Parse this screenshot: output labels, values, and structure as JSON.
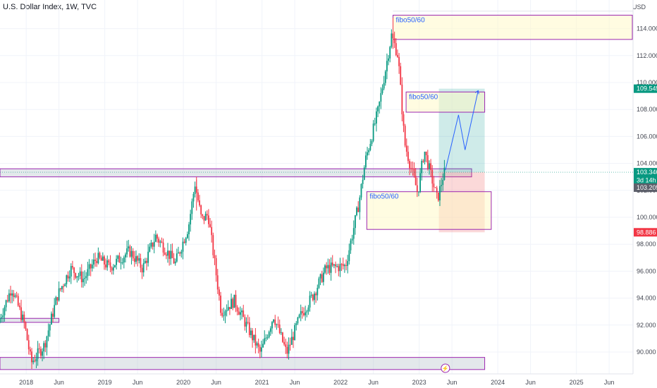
{
  "header": {
    "title": "U.S. Dollar Index, 1W, TVC",
    "currency": "USD"
  },
  "colors": {
    "up": "#089981",
    "down": "#f23645",
    "box_border": "#9c27b0",
    "box_fill": "#fff9c4",
    "zone_fill": "#b0bec5",
    "profit": "#26a69a",
    "loss": "#ef5350",
    "annotation": "#2962ff"
  },
  "chart_data": {
    "type": "candlestick",
    "title": "U.S. Dollar Index, 1W, TVC",
    "y_axis": {
      "side": "right",
      "ylim": [
        88.7,
        117.0
      ],
      "ticks": [
        "90.000",
        "92.000",
        "94.000",
        "96.000",
        "98.000",
        "100.000",
        "102.000",
        "104.000",
        "106.000",
        "108.000",
        "110.000",
        "112.000",
        "114.000"
      ]
    },
    "x_axis": {
      "ticks": [
        "2018",
        "Jun",
        "2019",
        "Jun",
        "2020",
        "Jun",
        "2021",
        "Jun",
        "2022",
        "Jun",
        "2023",
        "Jun",
        "2024",
        "Jun",
        "2025",
        "Jun"
      ]
    },
    "price_path": [
      [
        "2017-09",
        92.2
      ],
      [
        "2017-11",
        94.8
      ],
      [
        "2018-01",
        92.0
      ],
      [
        "2018-02",
        89.2
      ],
      [
        "2018-04",
        90.5
      ],
      [
        "2018-06",
        94.2
      ],
      [
        "2018-08",
        96.2
      ],
      [
        "2018-10",
        95.4
      ],
      [
        "2018-12",
        97.0
      ],
      [
        "2019-02",
        96.3
      ],
      [
        "2019-05",
        97.5
      ],
      [
        "2019-07",
        96.2
      ],
      [
        "2019-09",
        98.6
      ],
      [
        "2019-12",
        96.6
      ],
      [
        "2020-02",
        99.3
      ],
      [
        "2020-03",
        102.5
      ],
      [
        "2020-04",
        99.8
      ],
      [
        "2020-05",
        100.2
      ],
      [
        "2020-07",
        93.0
      ],
      [
        "2020-09",
        93.8
      ],
      [
        "2021-01",
        89.9
      ],
      [
        "2021-03",
        92.7
      ],
      [
        "2021-05",
        89.9
      ],
      [
        "2021-07",
        92.6
      ],
      [
        "2021-09",
        94.2
      ],
      [
        "2021-11",
        96.2
      ],
      [
        "2022-02",
        96.4
      ],
      [
        "2022-04",
        101.0
      ],
      [
        "2022-05",
        104.2
      ],
      [
        "2022-07",
        108.0
      ],
      [
        "2022-09",
        113.5
      ],
      [
        "2022-10",
        112.0
      ],
      [
        "2022-11",
        105.5
      ],
      [
        "2023-01",
        101.8
      ],
      [
        "2023-02",
        105.0
      ],
      [
        "2023-04",
        101.3
      ],
      [
        "2023-05",
        103.3
      ]
    ],
    "wick_extremes": {
      "high": "114.8 (2022-09)",
      "low": "88.3 (2018-02)"
    },
    "price_tags": [
      {
        "label": "109.545",
        "value": 109.545,
        "color": "#089981"
      },
      {
        "label": "103.346",
        "value": 103.346,
        "color": "#089981"
      },
      {
        "label": "3d 14h",
        "value": 102.75,
        "color": "#089981"
      },
      {
        "label": "103.205",
        "value": 102.2,
        "color": "#5d606b"
      },
      {
        "label": "98.886",
        "value": 98.886,
        "color": "#f23645"
      }
    ],
    "annotations": [
      {
        "label": "fibo50/60",
        "from": "2022-09",
        "to": "2025-10",
        "y_range": [
          113.2,
          115.0
        ]
      },
      {
        "label": "fibo50/60",
        "from": "2022-11",
        "to": "2023-11",
        "y_range": [
          107.8,
          109.3
        ]
      },
      {
        "label": "fibo50/60",
        "from": "2022-05",
        "to": "2023-12",
        "y_range": [
          99.1,
          101.9
        ]
      }
    ],
    "zones": [
      {
        "from": "2017-09",
        "to": "2023-09",
        "y_range": [
          103.0,
          103.6
        ]
      },
      {
        "from": "2017-09",
        "to": "2018-06",
        "y_range": [
          92.2,
          92.5
        ]
      },
      {
        "from": "2017-09",
        "to": "2023-11",
        "y_range": [
          88.7,
          89.6
        ]
      }
    ],
    "position": {
      "type": "long",
      "entry": 103.346,
      "target": 109.545,
      "stop": 98.886,
      "from": "2023-04",
      "to": "2023-11"
    },
    "projection": [
      [
        "2023-05",
        103.5
      ],
      [
        "2023-07",
        107.6
      ],
      [
        "2023-08",
        105.0
      ],
      [
        "2023-10",
        109.4
      ]
    ]
  }
}
